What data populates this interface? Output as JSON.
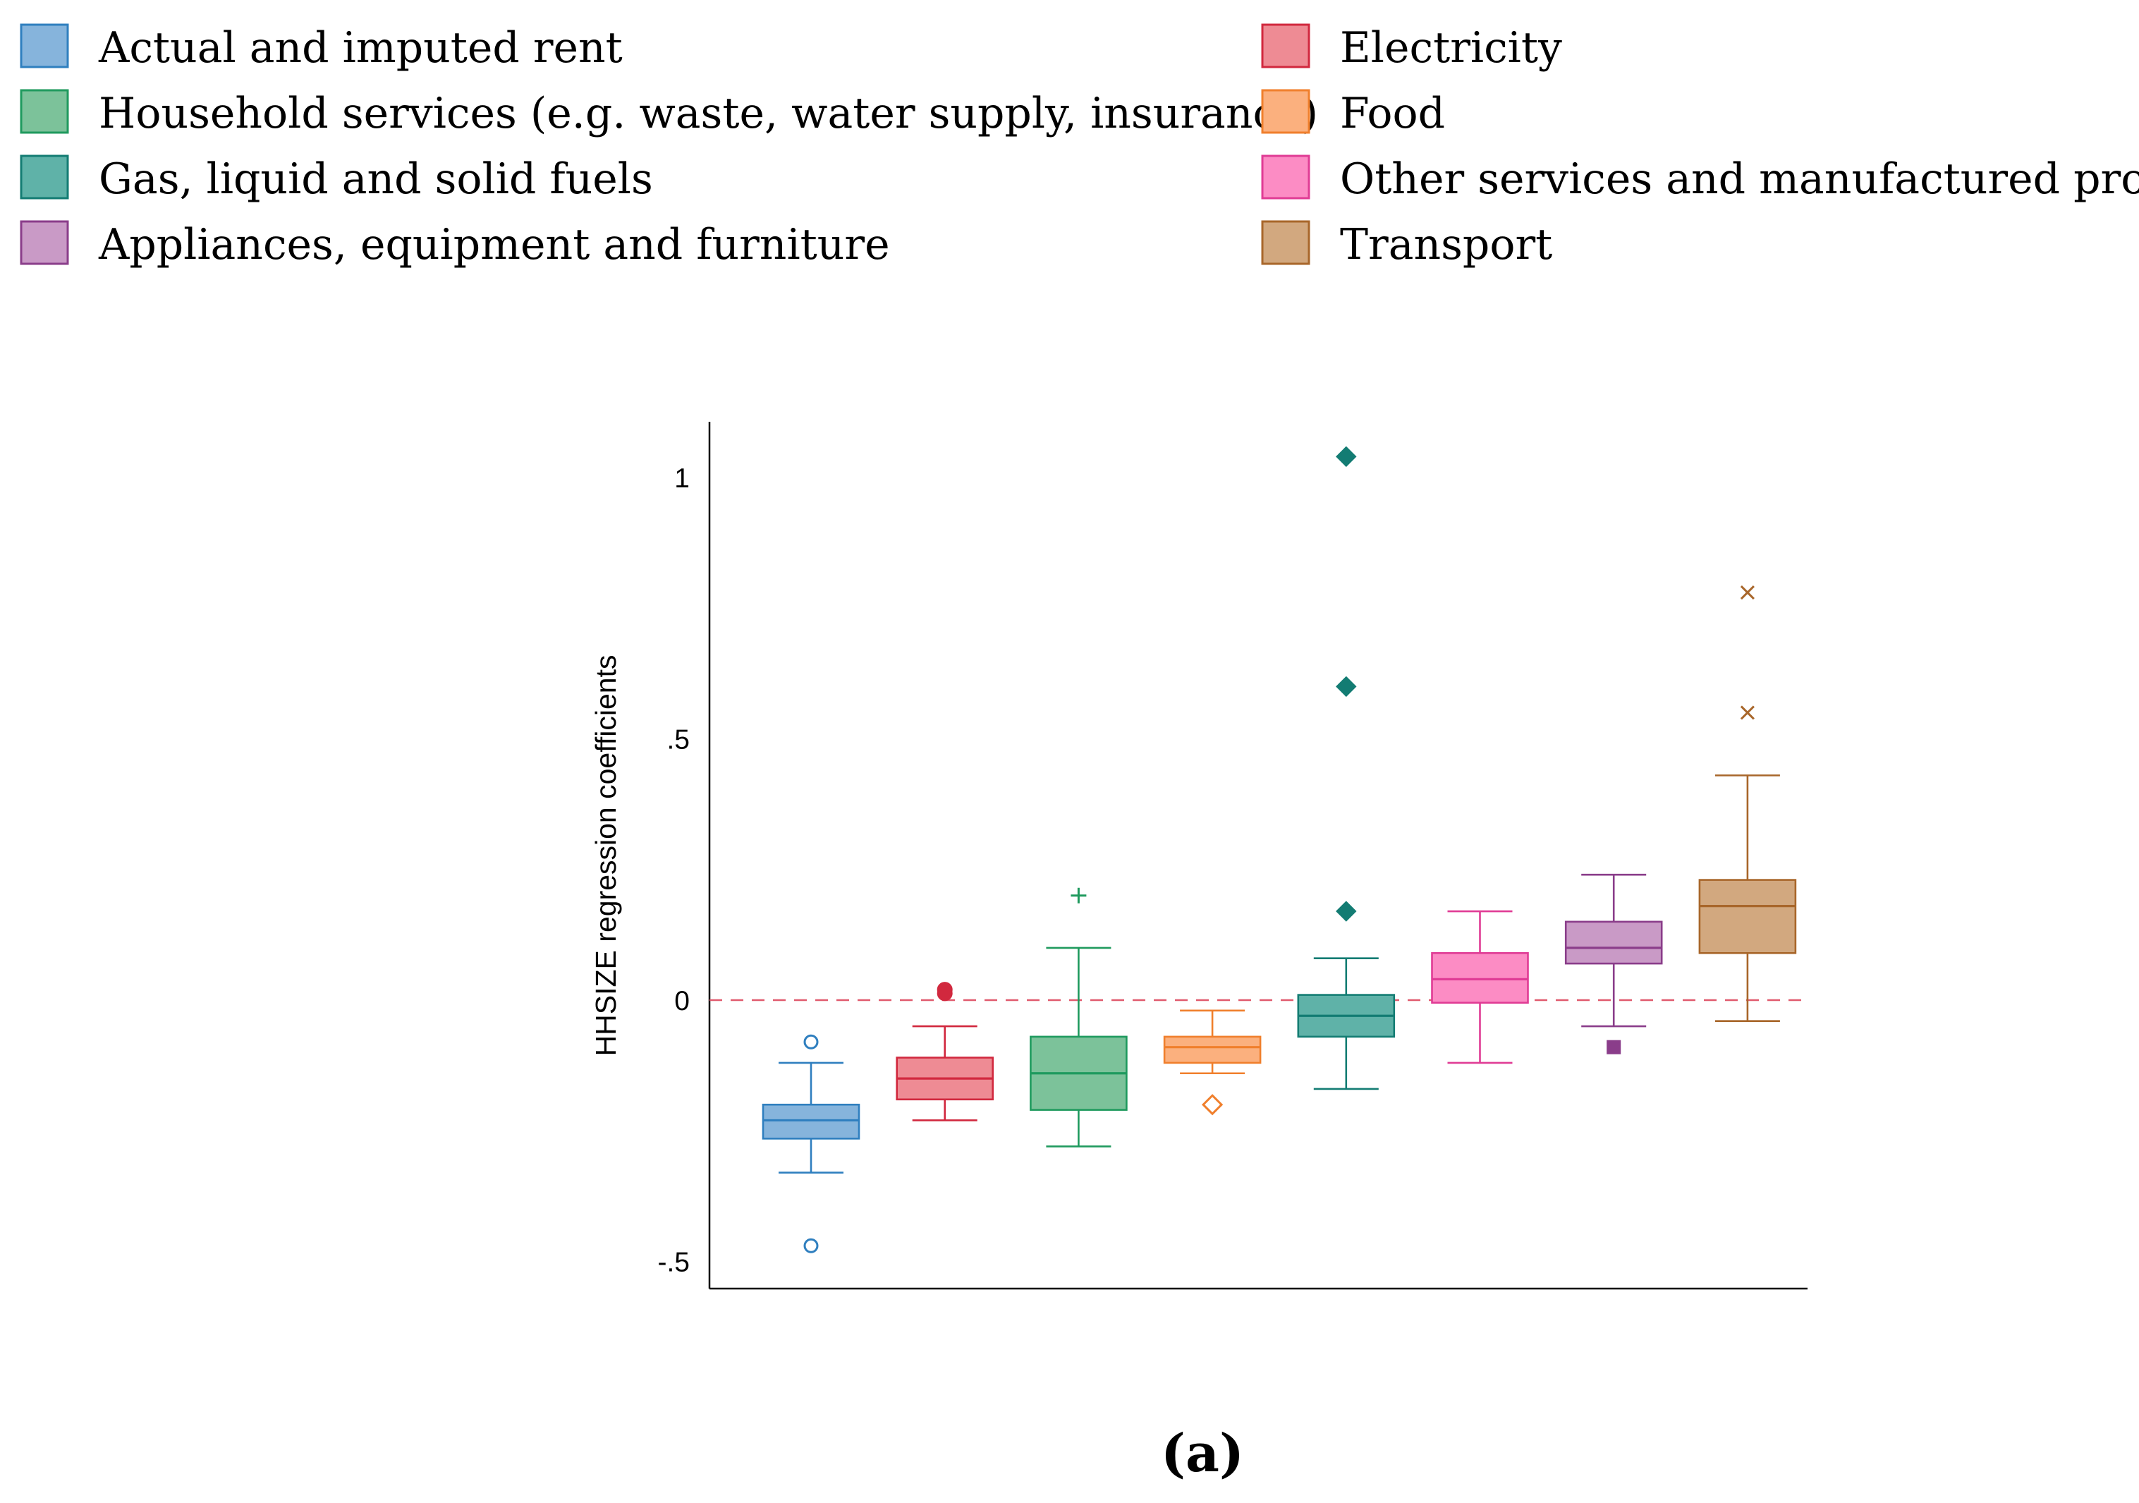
{
  "chart_data": {
    "type": "box",
    "title": "",
    "caption": "(a)",
    "ylabel": "HHSIZE regression coefficients",
    "xlabel": "",
    "ylim": [
      -0.55,
      1.11
    ],
    "yticks": [
      1,
      0.5,
      0,
      -0.5
    ],
    "ytick_labels": [
      "1",
      ".5",
      "0",
      "-.5"
    ],
    "reference_line": {
      "y": 0,
      "style": "dashed",
      "color": "#e05a6e"
    },
    "legend": {
      "placement": "top",
      "columns": 2,
      "entries": [
        {
          "label": "Actual and imputed rent",
          "fill": "#86b4dc",
          "stroke": "#2f7fbf"
        },
        {
          "label": "Household services (e.g. waste, water supply, insurance)",
          "fill": "#7cc29a",
          "stroke": "#1f9a5e"
        },
        {
          "label": "Gas, liquid and solid fuels",
          "fill": "#5fb2a8",
          "stroke": "#137c73"
        },
        {
          "label": "Appliances, equipment and furniture",
          "fill": "#c99ac6",
          "stroke": "#8a3d8a"
        },
        {
          "label": "Electricity",
          "fill": "#ee8b94",
          "stroke": "#d1283e"
        },
        {
          "label": "Food",
          "fill": "#fbb07e",
          "stroke": "#f07f2c"
        },
        {
          "label": "Other services and manufactured products",
          "fill": "#fc8cc4",
          "stroke": "#e03c95"
        },
        {
          "label": "Transport",
          "fill": "#d2a87f",
          "stroke": "#a8662a"
        }
      ]
    },
    "series": [
      {
        "name": "Actual and imputed rent",
        "fill": "#86b4dc",
        "stroke": "#2f7fbf",
        "whisker_low": -0.33,
        "q1": -0.265,
        "median": -0.23,
        "q3": -0.2,
        "whisker_high": -0.12,
        "outliers": [
          {
            "y": -0.08,
            "marker": "circle-open"
          },
          {
            "y": -0.47,
            "marker": "circle-open"
          }
        ]
      },
      {
        "name": "Electricity",
        "fill": "#ee8b94",
        "stroke": "#d1283e",
        "whisker_low": -0.23,
        "q1": -0.19,
        "median": -0.15,
        "q3": -0.11,
        "whisker_high": -0.05,
        "outliers": [
          {
            "y": 0.02,
            "marker": "circle-filled"
          },
          {
            "y": 0.013,
            "marker": "circle-filled"
          }
        ]
      },
      {
        "name": "Household services (e.g. waste, water supply, insurance)",
        "fill": "#7cc29a",
        "stroke": "#1f9a5e",
        "whisker_low": -0.28,
        "q1": -0.21,
        "median": -0.14,
        "q3": -0.07,
        "whisker_high": 0.1,
        "outliers": [
          {
            "y": 0.2,
            "marker": "plus"
          }
        ]
      },
      {
        "name": "Food",
        "fill": "#fbb07e",
        "stroke": "#f07f2c",
        "whisker_low": -0.14,
        "q1": -0.12,
        "median": -0.09,
        "q3": -0.07,
        "whisker_high": -0.02,
        "outliers": [
          {
            "y": -0.2,
            "marker": "diamond-open"
          }
        ]
      },
      {
        "name": "Gas, liquid and solid fuels",
        "fill": "#5fb2a8",
        "stroke": "#137c73",
        "whisker_low": -0.17,
        "q1": -0.07,
        "median": -0.03,
        "q3": 0.01,
        "whisker_high": 0.08,
        "outliers": [
          {
            "y": 1.04,
            "marker": "diamond-filled"
          },
          {
            "y": 0.6,
            "marker": "diamond-filled"
          },
          {
            "y": 0.17,
            "marker": "diamond-filled"
          }
        ]
      },
      {
        "name": "Other services and manufactured products",
        "fill": "#fc8cc4",
        "stroke": "#e03c95",
        "whisker_low": -0.12,
        "q1": -0.005,
        "median": 0.04,
        "q3": 0.09,
        "whisker_high": 0.17,
        "outliers": []
      },
      {
        "name": "Appliances, equipment and furniture",
        "fill": "#c99ac6",
        "stroke": "#8a3d8a",
        "whisker_low": -0.05,
        "q1": 0.07,
        "median": 0.1,
        "q3": 0.15,
        "whisker_high": 0.24,
        "outliers": [
          {
            "y": -0.09,
            "marker": "square-filled"
          }
        ]
      },
      {
        "name": "Transport",
        "fill": "#d2a87f",
        "stroke": "#a8662a",
        "whisker_low": -0.04,
        "q1": 0.09,
        "median": 0.18,
        "q3": 0.23,
        "whisker_high": 0.43,
        "outliers": [
          {
            "y": 0.78,
            "marker": "x"
          },
          {
            "y": 0.55,
            "marker": "x"
          }
        ]
      }
    ]
  }
}
